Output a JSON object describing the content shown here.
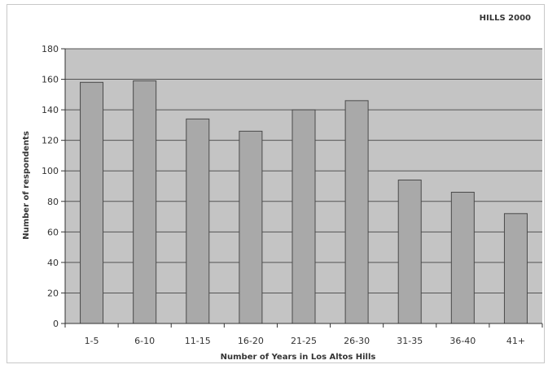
{
  "chart_data": {
    "type": "bar",
    "title": "HILLS 2000",
    "xlabel": "Number of Years in Los Altos Hills",
    "ylabel": "Number of respondents",
    "categories": [
      "1-5",
      "6-10",
      "11-15",
      "16-20",
      "21-25",
      "26-30",
      "31-35",
      "36-40",
      "41+"
    ],
    "values": [
      158,
      159,
      134,
      126,
      140,
      146,
      94,
      86,
      72
    ],
    "ylim": [
      0,
      180
    ],
    "yticks": [
      0,
      20,
      40,
      60,
      80,
      100,
      120,
      140,
      160,
      180
    ],
    "grid": true,
    "legend": "none",
    "colors": {
      "plot_background": "#c4c4c4",
      "bar_fill": "#a9a9a9",
      "bar_stroke": "#4a4a4a",
      "grid": "#555555"
    }
  }
}
